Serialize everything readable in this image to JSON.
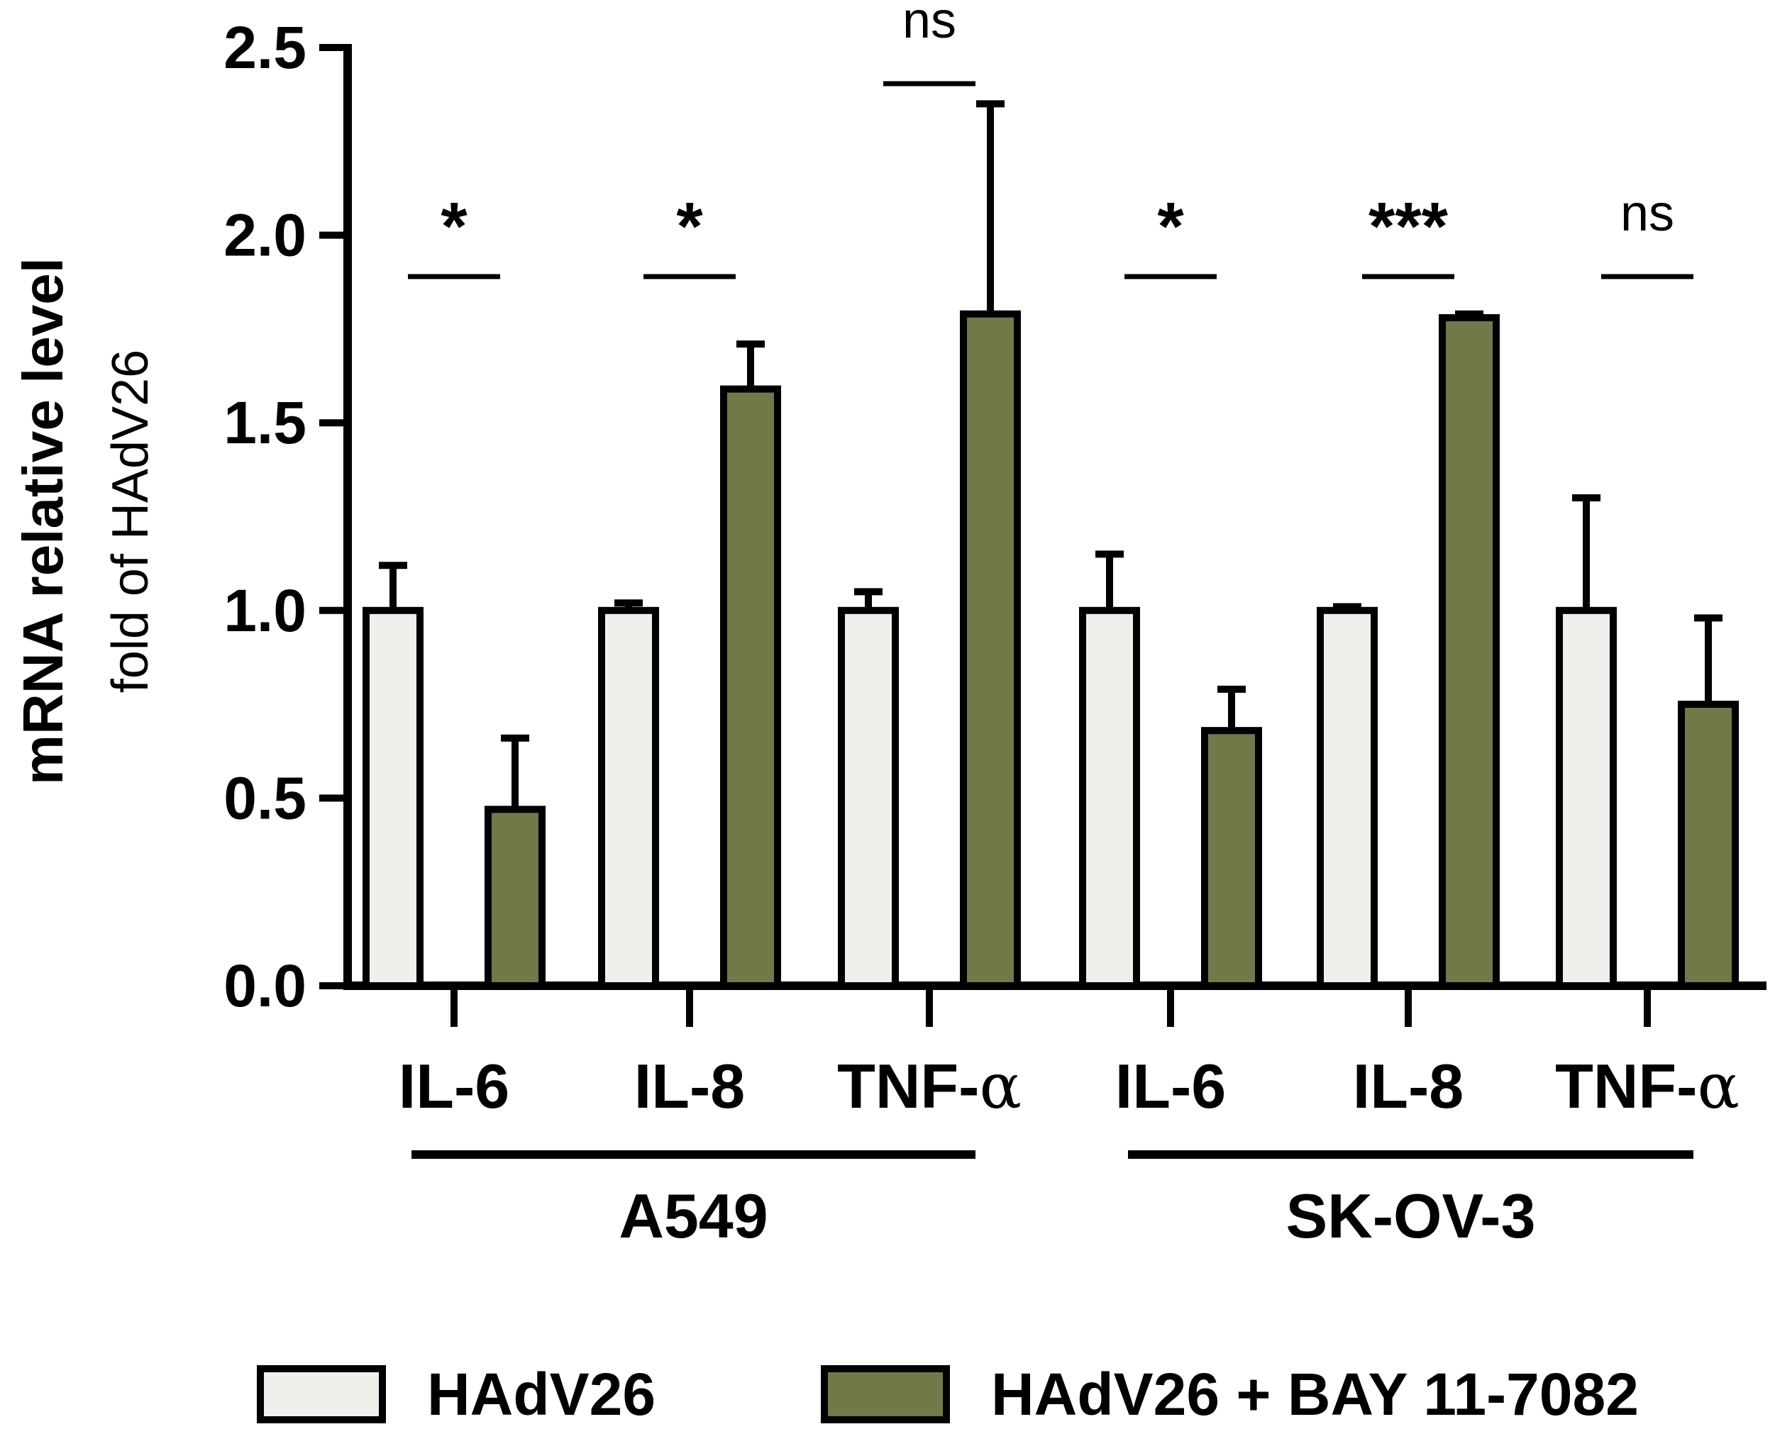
{
  "chart_data": {
    "type": "bar",
    "title": "",
    "ylabel": "mRNA relative level",
    "ylabel_sub": "fold of HAdV26",
    "ylim": [
      0,
      2.5
    ],
    "yticks": [
      "0.0",
      "0.5",
      "1.0",
      "1.5",
      "2.0",
      "2.5"
    ],
    "yticks_values": [
      0,
      0.5,
      1.0,
      1.5,
      2.0,
      2.5
    ],
    "categories": [
      {
        "name": "IL-",
        "suffix": "6",
        "label": "IL-6",
        "group": "A549"
      },
      {
        "name": "IL-",
        "suffix": "8",
        "label": "IL-8",
        "group": "A549"
      },
      {
        "name": "TNF-",
        "suffix": "α",
        "label": "TNF-α",
        "group": "A549"
      },
      {
        "name": "IL-",
        "suffix": "6",
        "label": "IL-6",
        "group": "SK-OV-3"
      },
      {
        "name": "IL-",
        "suffix": "8",
        "label": "IL-8",
        "group": "SK-OV-3"
      },
      {
        "name": "TNF-",
        "suffix": "α",
        "label": "TNF-α",
        "group": "SK-OV-3"
      }
    ],
    "groups": [
      "A549",
      "SK-OV-3"
    ],
    "series": [
      {
        "name": "HAdV26",
        "color": "#eef0ec",
        "values": [
          1.0,
          1.0,
          1.0,
          1.0,
          1.0,
          1.0
        ],
        "errors": [
          0.12,
          0.02,
          0.05,
          0.15,
          0.01,
          0.3
        ]
      },
      {
        "name": "HAdV26 + BAY 11-7082",
        "color": "#707a48",
        "values": [
          0.47,
          1.59,
          1.79,
          0.68,
          1.78,
          0.75
        ],
        "errors": [
          0.19,
          0.12,
          0.56,
          0.11,
          0.01,
          0.23
        ]
      }
    ],
    "significance": [
      "*",
      "*",
      "ns",
      "*",
      "***",
      "ns"
    ],
    "legend_position": "bottom"
  }
}
